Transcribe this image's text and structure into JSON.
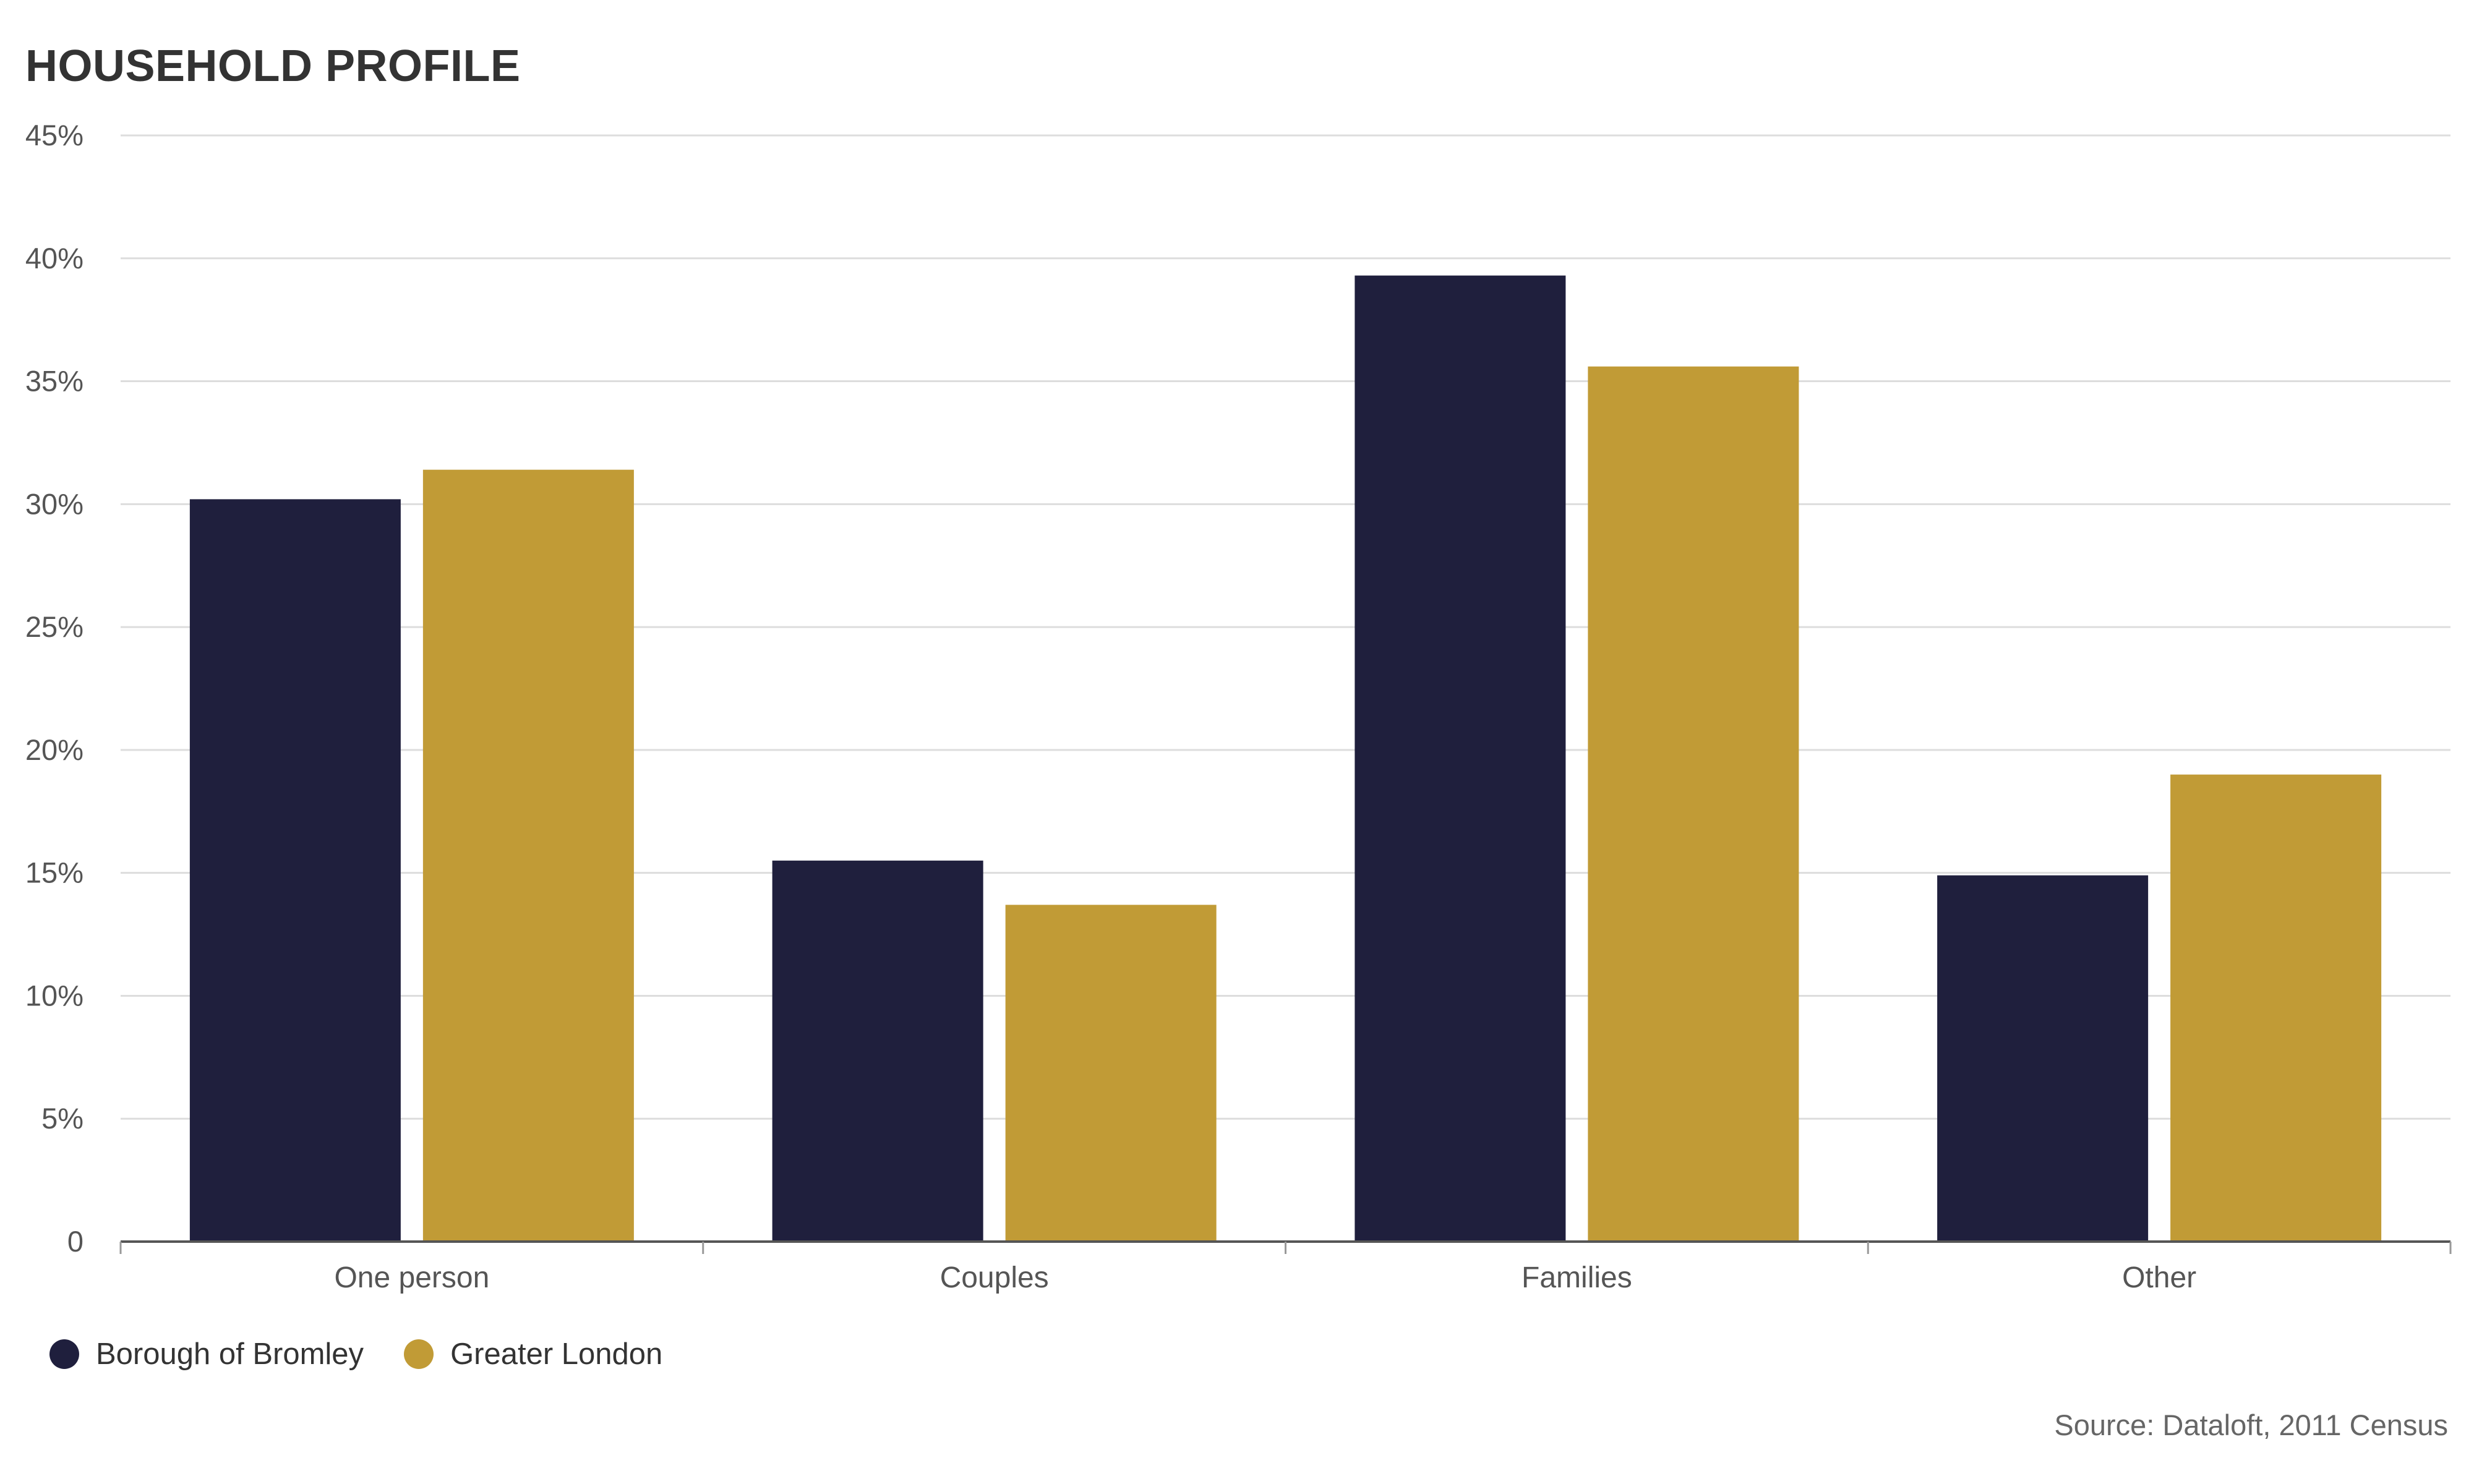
{
  "chart_data": {
    "type": "bar",
    "title": "HOUSEHOLD PROFILE",
    "xlabel": "",
    "ylabel": "",
    "categories": [
      "One person",
      "Couples",
      "Families",
      "Other"
    ],
    "series": [
      {
        "name": "Borough of Bromley",
        "color": "#1f1f3d",
        "values": [
          30.2,
          15.5,
          39.3,
          14.9
        ]
      },
      {
        "name": "Greater London",
        "color": "#c19b36",
        "values": [
          31.4,
          13.7,
          35.6,
          19.0
        ]
      }
    ],
    "ylim": [
      0,
      45
    ],
    "yticks": [
      0,
      5,
      10,
      15,
      20,
      25,
      30,
      35,
      40,
      45
    ],
    "ytick_labels": [
      "0",
      "5%",
      "10%",
      "15%",
      "20%",
      "25%",
      "30%",
      "35%",
      "40%",
      "45%"
    ],
    "grid": true,
    "legend_position": "bottom-left",
    "source": "Source: Dataloft, 2011 Census"
  }
}
